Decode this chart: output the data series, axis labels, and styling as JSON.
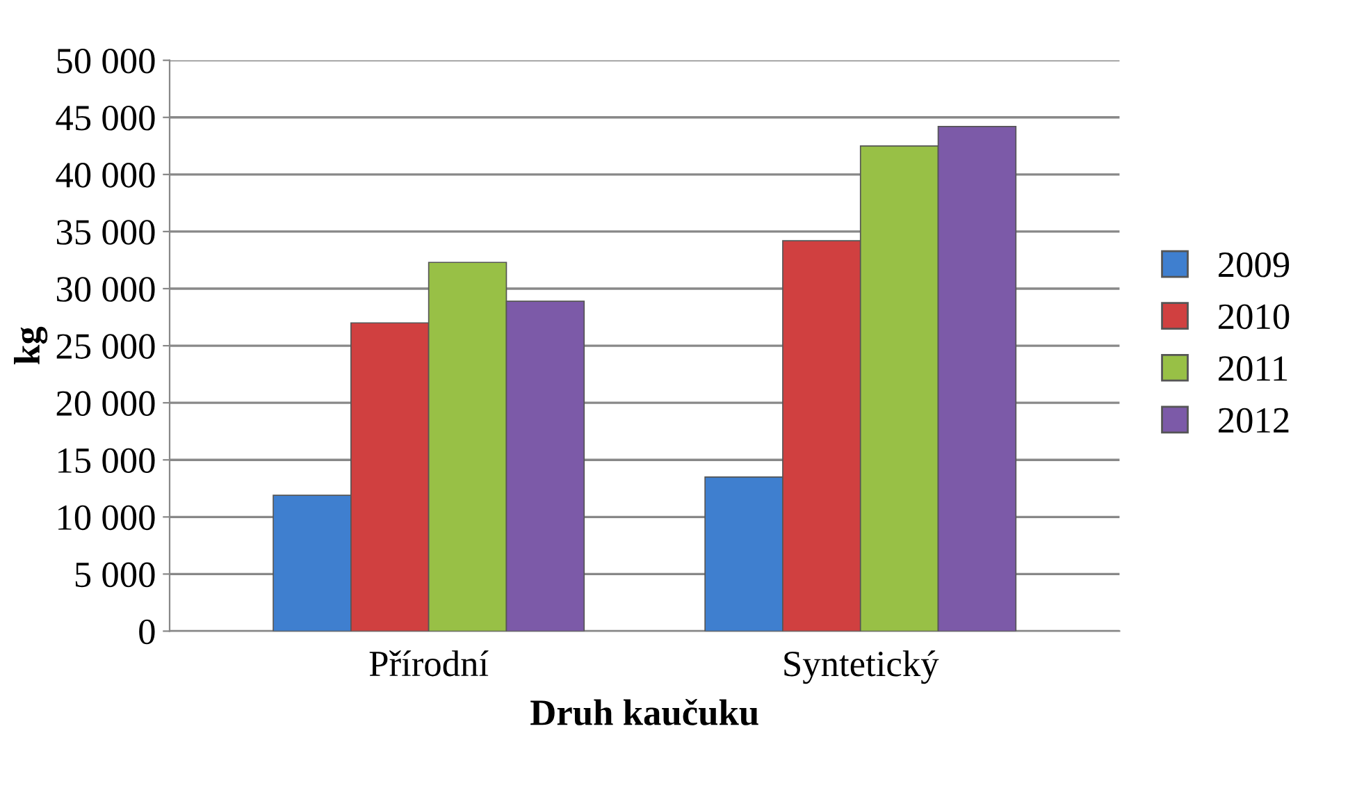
{
  "chart_data": {
    "type": "bar",
    "xlabel": "Druh kaučuku",
    "ylabel": "kg",
    "categories": [
      "Přírodní",
      "Syntetický"
    ],
    "series": [
      {
        "name": "2009",
        "color": "#3f7fcf",
        "values": [
          11900,
          13500
        ]
      },
      {
        "name": "2010",
        "color": "#d04040",
        "values": [
          27000,
          34200
        ]
      },
      {
        "name": "2011",
        "color": "#98c046",
        "values": [
          32300,
          42500
        ]
      },
      {
        "name": "2012",
        "color": "#7c5aa8",
        "values": [
          28900,
          44200
        ]
      }
    ],
    "ylim": [
      0,
      50000
    ],
    "yticks": [
      {
        "value": 0,
        "label": "0"
      },
      {
        "value": 5000,
        "label": "5 000"
      },
      {
        "value": 10000,
        "label": "10 000"
      },
      {
        "value": 15000,
        "label": "15 000"
      },
      {
        "value": 20000,
        "label": "20 000"
      },
      {
        "value": 25000,
        "label": "25 000"
      },
      {
        "value": 30000,
        "label": "30 000"
      },
      {
        "value": 35000,
        "label": "35 000"
      },
      {
        "value": 40000,
        "label": "40 000"
      },
      {
        "value": 45000,
        "label": "45 000"
      },
      {
        "value": 50000,
        "label": "50 000"
      }
    ],
    "grid": "y",
    "legend": "right"
  }
}
